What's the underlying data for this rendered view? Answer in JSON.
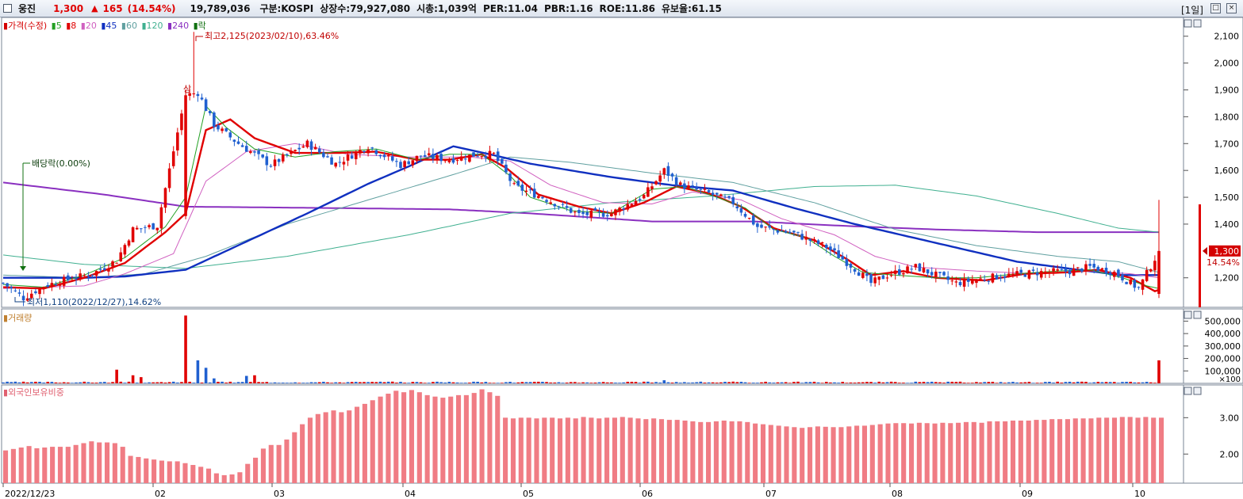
{
  "header": {
    "name": "웅진",
    "price": "1,300",
    "arrow": "▲",
    "change": "165",
    "change_pct": "(14.54%)",
    "volume": "19,789,036",
    "stats": [
      "구분:KOSPI",
      "상장수:79,927,080",
      "시총:1,039억",
      "PER:11.04",
      "PBR:1.16",
      "ROE:11.86",
      "유보율:61.15"
    ],
    "period": "[1일]"
  },
  "legend": {
    "items": [
      {
        "label": "가격(수정)",
        "color": "#d40000",
        "marker": "▮"
      },
      {
        "label": "5",
        "color": "#23a023"
      },
      {
        "label": "8",
        "color": "#e00000"
      },
      {
        "label": "20",
        "color": "#d060c0"
      },
      {
        "label": "45",
        "color": "#1030c0"
      },
      {
        "label": "60",
        "color": "#60a0a0"
      },
      {
        "label": "120",
        "color": "#40b090"
      },
      {
        "label": "240",
        "color": "#8a30c0"
      },
      {
        "label": "락",
        "color": "#107010"
      }
    ],
    "volume_label": "거래량",
    "foreign_label": "외국인보유비중"
  },
  "annotations": {
    "high": "최고2,125(2023/02/10),63.46%",
    "low": "최저1,110(2022/12/27),14.62%",
    "dividend": "배당락(0.00%)",
    "sang": "상"
  },
  "current": {
    "price": "1,300",
    "pct": "14.54%"
  },
  "colors": {
    "up": "#e00000",
    "down": "#2060d0",
    "bg": "#ffffff",
    "grid": "#d8d8d8"
  },
  "chart_data": [
    {
      "type": "candlestick",
      "title": "",
      "y_ticks": [
        "2,100",
        "2,000",
        "1,900",
        "1,800",
        "1,700",
        "1,600",
        "1,500",
        "1,400",
        "1,200"
      ],
      "ylim": [
        1090,
        2170
      ],
      "x_ticks": [
        "2022/12/23",
        "02",
        "03",
        "04",
        "05",
        "06",
        "07",
        "08",
        "09",
        "10"
      ],
      "price_anchors": [
        [
          0,
          1180
        ],
        [
          5,
          1125
        ],
        [
          10,
          1170
        ],
        [
          15,
          1190
        ],
        [
          22,
          1215
        ],
        [
          28,
          1265
        ],
        [
          32,
          1380
        ],
        [
          38,
          1395
        ],
        [
          45,
          1880
        ],
        [
          48,
          1890
        ],
        [
          52,
          1770
        ],
        [
          58,
          1700
        ],
        [
          62,
          1660
        ],
        [
          66,
          1620
        ],
        [
          75,
          1700
        ],
        [
          82,
          1625
        ],
        [
          90,
          1690
        ],
        [
          98,
          1620
        ],
        [
          103,
          1655
        ],
        [
          110,
          1640
        ],
        [
          117,
          1660
        ],
        [
          121,
          1660
        ],
        [
          126,
          1540
        ],
        [
          133,
          1500
        ],
        [
          142,
          1435
        ],
        [
          150,
          1440
        ],
        [
          158,
          1505
        ],
        [
          163,
          1600
        ],
        [
          167,
          1545
        ],
        [
          174,
          1515
        ],
        [
          180,
          1480
        ],
        [
          186,
          1390
        ],
        [
          195,
          1365
        ],
        [
          203,
          1315
        ],
        [
          210,
          1235
        ],
        [
          214,
          1180
        ],
        [
          218,
          1210
        ],
        [
          225,
          1240
        ],
        [
          235,
          1180
        ],
        [
          245,
          1205
        ],
        [
          255,
          1220
        ],
        [
          263,
          1225
        ],
        [
          268,
          1240
        ],
        [
          274,
          1220
        ],
        [
          280,
          1160
        ],
        [
          285,
          1300
        ]
      ],
      "moving_averages": [
        {
          "name": "5",
          "color": "#23a023",
          "points": [
            [
              0,
              1175
            ],
            [
              10,
              1165
            ],
            [
              20,
              1210
            ],
            [
              30,
              1275
            ],
            [
              40,
              1390
            ],
            [
              45,
              1500
            ],
            [
              50,
              1840
            ],
            [
              55,
              1760
            ],
            [
              62,
              1680
            ],
            [
              72,
              1650
            ],
            [
              82,
              1670
            ],
            [
              92,
              1680
            ],
            [
              102,
              1640
            ],
            [
              110,
              1660
            ],
            [
              118,
              1660
            ],
            [
              125,
              1580
            ],
            [
              130,
              1500
            ],
            [
              140,
              1450
            ],
            [
              150,
              1440
            ],
            [
              160,
              1530
            ],
            [
              168,
              1540
            ],
            [
              176,
              1500
            ],
            [
              183,
              1460
            ],
            [
              190,
              1380
            ],
            [
              198,
              1350
            ],
            [
              205,
              1280
            ],
            [
              212,
              1220
            ],
            [
              220,
              1210
            ],
            [
              230,
              1200
            ],
            [
              240,
              1200
            ],
            [
              250,
              1215
            ],
            [
              260,
              1225
            ],
            [
              268,
              1230
            ],
            [
              276,
              1200
            ],
            [
              282,
              1170
            ],
            [
              285,
              1160
            ]
          ]
        },
        {
          "name": "8",
          "color": "#e00000",
          "points": [
            [
              0,
              1165
            ],
            [
              10,
              1160
            ],
            [
              20,
              1200
            ],
            [
              30,
              1255
            ],
            [
              40,
              1370
            ],
            [
              45,
              1440
            ],
            [
              50,
              1750
            ],
            [
              56,
              1790
            ],
            [
              62,
              1720
            ],
            [
              72,
              1665
            ],
            [
              82,
              1665
            ],
            [
              92,
              1670
            ],
            [
              102,
              1640
            ],
            [
              110,
              1640
            ],
            [
              118,
              1660
            ],
            [
              124,
              1610
            ],
            [
              132,
              1510
            ],
            [
              142,
              1465
            ],
            [
              150,
              1440
            ],
            [
              158,
              1480
            ],
            [
              166,
              1540
            ],
            [
              174,
              1515
            ],
            [
              182,
              1465
            ],
            [
              190,
              1385
            ],
            [
              200,
              1340
            ],
            [
              208,
              1270
            ],
            [
              214,
              1210
            ],
            [
              222,
              1225
            ],
            [
              230,
              1200
            ],
            [
              242,
              1190
            ],
            [
              252,
              1215
            ],
            [
              262,
              1220
            ],
            [
              270,
              1230
            ],
            [
              278,
              1200
            ],
            [
              284,
              1150
            ],
            [
              285,
              1155
            ]
          ]
        },
        {
          "name": "20",
          "color": "#d060c0",
          "points": [
            [
              0,
              1160
            ],
            [
              20,
              1170
            ],
            [
              30,
              1215
            ],
            [
              42,
              1290
            ],
            [
              50,
              1560
            ],
            [
              60,
              1670
            ],
            [
              72,
              1700
            ],
            [
              85,
              1660
            ],
            [
              100,
              1650
            ],
            [
              115,
              1650
            ],
            [
              125,
              1635
            ],
            [
              135,
              1545
            ],
            [
              148,
              1480
            ],
            [
              160,
              1475
            ],
            [
              170,
              1520
            ],
            [
              182,
              1490
            ],
            [
              192,
              1420
            ],
            [
              205,
              1360
            ],
            [
              215,
              1280
            ],
            [
              225,
              1240
            ],
            [
              240,
              1225
            ],
            [
              255,
              1215
            ],
            [
              268,
              1225
            ],
            [
              278,
              1215
            ],
            [
              285,
              1200
            ]
          ]
        },
        {
          "name": "45",
          "color": "#1030c0",
          "points": [
            [
              0,
              1200
            ],
            [
              20,
              1200
            ],
            [
              30,
              1205
            ],
            [
              45,
              1230
            ],
            [
              60,
              1335
            ],
            [
              75,
              1440
            ],
            [
              90,
              1550
            ],
            [
              100,
              1615
            ],
            [
              111,
              1690
            ],
            [
              120,
              1660
            ],
            [
              130,
              1625
            ],
            [
              150,
              1575
            ],
            [
              165,
              1545
            ],
            [
              180,
              1525
            ],
            [
              195,
              1460
            ],
            [
              210,
              1400
            ],
            [
              230,
              1330
            ],
            [
              250,
              1260
            ],
            [
              265,
              1230
            ],
            [
              276,
              1210
            ],
            [
              285,
              1210
            ]
          ]
        },
        {
          "name": "60",
          "color": "#60a0a0",
          "points": [
            [
              0,
              1210
            ],
            [
              20,
              1200
            ],
            [
              35,
              1215
            ],
            [
              50,
              1280
            ],
            [
              70,
              1400
            ],
            [
              90,
              1490
            ],
            [
              110,
              1580
            ],
            [
              125,
              1650
            ],
            [
              140,
              1630
            ],
            [
              160,
              1590
            ],
            [
              180,
              1555
            ],
            [
              200,
              1480
            ],
            [
              220,
              1380
            ],
            [
              240,
              1320
            ],
            [
              260,
              1280
            ],
            [
              275,
              1260
            ],
            [
              285,
              1220
            ]
          ]
        },
        {
          "name": "120",
          "color": "#40b090",
          "points": [
            [
              0,
              1285
            ],
            [
              20,
              1250
            ],
            [
              45,
              1235
            ],
            [
              70,
              1280
            ],
            [
              100,
              1360
            ],
            [
              125,
              1440
            ],
            [
              150,
              1480
            ],
            [
              175,
              1505
            ],
            [
              200,
              1540
            ],
            [
              220,
              1545
            ],
            [
              240,
              1505
            ],
            [
              260,
              1440
            ],
            [
              275,
              1385
            ],
            [
              285,
              1370
            ]
          ]
        },
        {
          "name": "240",
          "color": "#8a30c0",
          "points": [
            [
              0,
              1555
            ],
            [
              25,
              1510
            ],
            [
              45,
              1465
            ],
            [
              80,
              1460
            ],
            [
              110,
              1455
            ],
            [
              130,
              1440
            ],
            [
              160,
              1410
            ],
            [
              185,
              1410
            ],
            [
              205,
              1395
            ],
            [
              230,
              1380
            ],
            [
              255,
              1370
            ],
            [
              285,
              1370
            ]
          ]
        }
      ]
    },
    {
      "type": "bar",
      "title": "",
      "y_ticks": [
        "500,000",
        "400,000",
        "300,000",
        "200,000",
        "100,000"
      ],
      "unit": "×100",
      "ylim": [
        0,
        560000
      ],
      "spikes": [
        [
          28,
          110000
        ],
        [
          32,
          65000
        ],
        [
          34,
          50000
        ],
        [
          45,
          545000
        ],
        [
          48,
          185000
        ],
        [
          50,
          125000
        ],
        [
          52,
          40000
        ],
        [
          60,
          60000
        ],
        [
          62,
          65000
        ],
        [
          163,
          25000
        ],
        [
          285,
          185000
        ]
      ]
    },
    {
      "type": "bar",
      "title": "",
      "y_ticks": [
        "3.00",
        "2.00"
      ],
      "ylim": [
        1.2,
        3.9
      ],
      "x_ticks": [
        "2022/12/23",
        "02",
        "03",
        "04",
        "05",
        "06",
        "07",
        "08",
        "09",
        "10"
      ],
      "values": [
        2.1,
        2.14,
        2.18,
        2.22,
        2.16,
        2.18,
        2.2,
        2.2,
        2.2,
        2.25,
        2.3,
        2.35,
        2.32,
        2.32,
        2.3,
        2.2,
        1.95,
        1.92,
        1.88,
        1.85,
        1.82,
        1.8,
        1.8,
        1.75,
        1.7,
        1.65,
        1.6,
        1.47,
        1.42,
        1.44,
        1.5,
        1.73,
        1.9,
        2.15,
        2.25,
        2.25,
        2.4,
        2.6,
        2.82,
        3.0,
        3.1,
        3.15,
        3.2,
        3.15,
        3.2,
        3.3,
        3.38,
        3.48,
        3.58,
        3.66,
        3.74,
        3.7,
        3.76,
        3.7,
        3.62,
        3.58,
        3.55,
        3.58,
        3.62,
        3.62,
        3.68,
        3.78,
        3.7,
        3.6,
        3.0,
        2.98,
        3.0,
        3.0,
        2.98,
        3.0,
        3.0,
        2.98,
        3.0,
        2.98,
        3.02,
        3.0,
        2.98,
        3.0,
        3.0,
        3.02,
        3.0,
        2.98,
        2.96,
        2.98,
        2.96,
        2.94,
        2.94,
        2.92,
        2.9,
        2.88,
        2.88,
        2.9,
        2.92,
        2.9,
        2.9,
        2.88,
        2.84,
        2.82,
        2.8,
        2.78,
        2.76,
        2.74,
        2.72,
        2.74,
        2.76,
        2.75,
        2.74,
        2.74,
        2.76,
        2.78,
        2.78,
        2.8,
        2.82,
        2.84,
        2.85,
        2.85,
        2.84,
        2.86,
        2.85,
        2.84,
        2.86,
        2.85,
        2.86,
        2.88,
        2.88,
        2.86,
        2.9,
        2.9,
        2.9,
        2.92,
        2.92,
        2.92,
        2.94,
        2.94,
        2.96,
        2.96,
        2.96,
        2.98,
        2.98,
        2.98,
        3.0,
        3.0,
        3.0,
        3.02,
        3.02,
        3.0,
        3.02,
        3.0,
        3.0
      ]
    }
  ]
}
